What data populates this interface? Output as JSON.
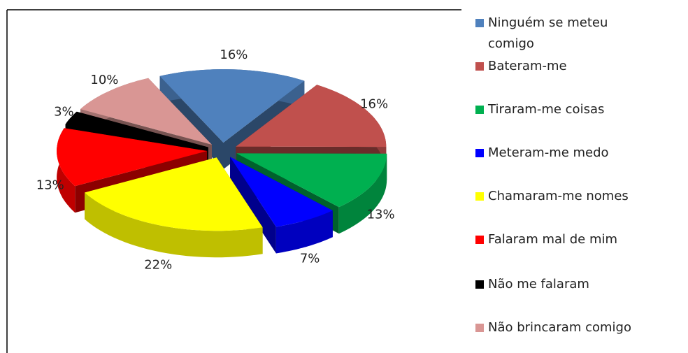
{
  "chart_data": {
    "type": "pie",
    "categories": [
      "Ninguém se meteu comigo",
      "Bateram-me",
      "Tiraram-me coisas",
      "Meteram-me medo",
      "Chamaram-me nomes",
      "Falaram mal de mim",
      "Não me falaram",
      "Não brincaram comigo"
    ],
    "values": [
      16,
      16,
      13,
      7,
      22,
      13,
      3,
      10
    ],
    "value_labels": [
      "16%",
      "16%",
      "13%",
      "7%",
      "22%",
      "13%",
      "3%",
      "10%"
    ],
    "colors": [
      "#4f81bd",
      "#c0504d",
      "#00b050",
      "#0000ff",
      "#ffff00",
      "#ff0000",
      "#000000",
      "#d99694"
    ],
    "legend": "right"
  }
}
